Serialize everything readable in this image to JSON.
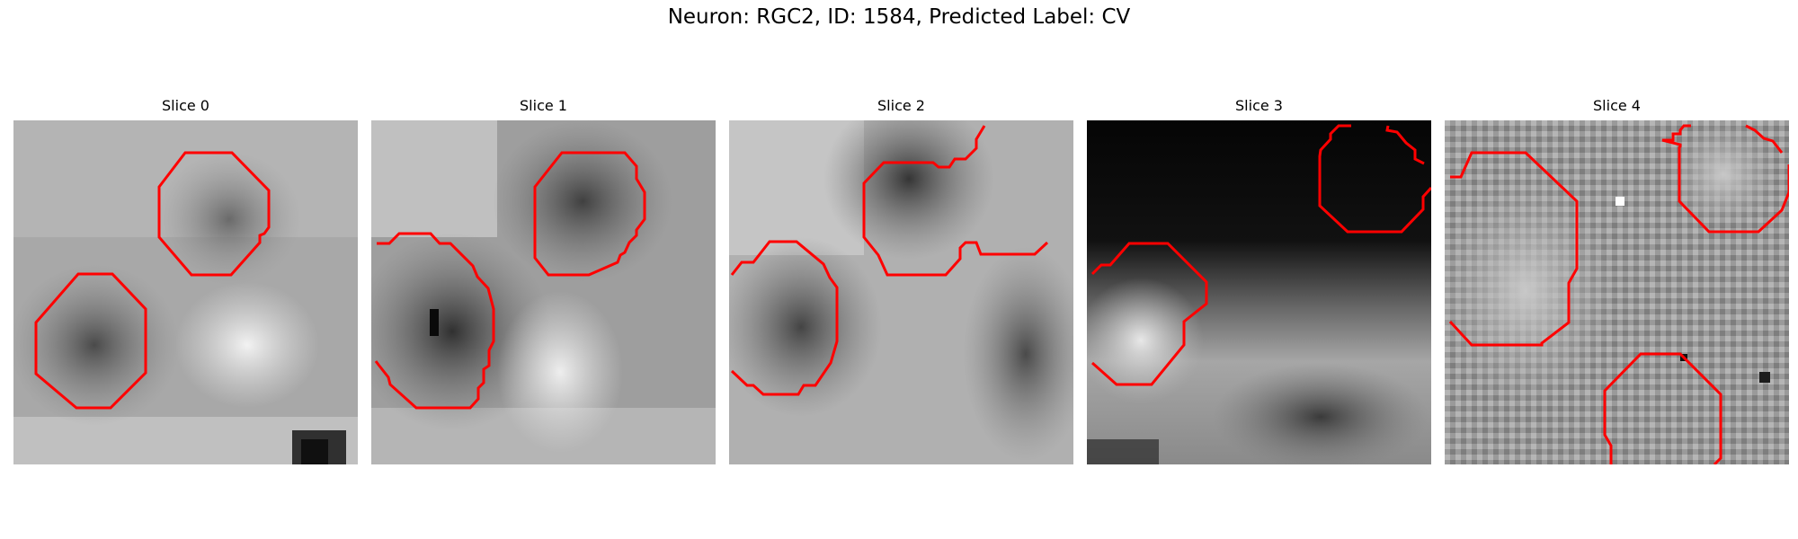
{
  "figure": {
    "title": "Neuron: RGC2, ID: 1584, Predicted Label: CV",
    "contour_color": "#ff0000"
  },
  "panels": [
    {
      "title": "Slice 0"
    },
    {
      "title": "Slice 1"
    },
    {
      "title": "Slice 2"
    },
    {
      "title": "Slice 3"
    },
    {
      "title": "Slice 4"
    }
  ]
}
